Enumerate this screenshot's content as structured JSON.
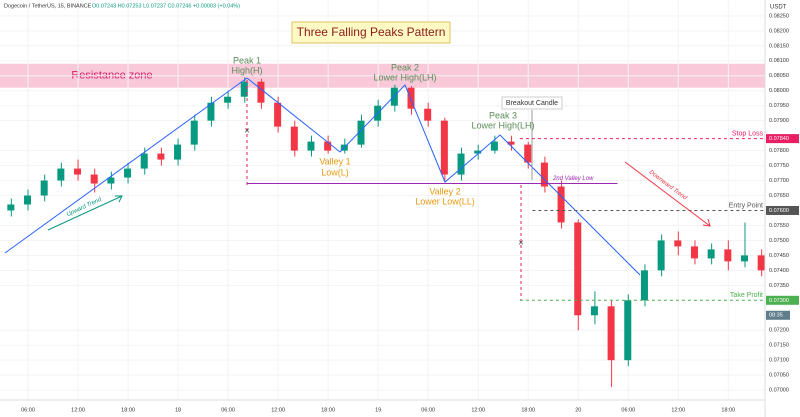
{
  "header": "Dogecoin / TetherUS, 15, BINANCE",
  "ohlc_header": "O0.07243 H0.07253 L0.07237 C0.07246 +0.00003 (+0.04%)",
  "currency": "USDT",
  "chart_data": {
    "type": "candlestick",
    "title": "Three Falling Peaks Pattern",
    "up_color": "#089981",
    "down_color": "#f23645",
    "x": [
      4,
      6,
      8,
      10,
      12,
      14,
      16,
      18,
      20,
      22,
      24,
      26,
      28,
      30,
      32,
      34,
      36,
      38,
      40,
      42,
      44,
      46,
      48,
      50,
      52,
      54,
      56,
      58,
      60,
      62,
      64,
      66,
      68,
      70,
      72,
      74,
      76,
      78,
      80,
      82,
      84,
      86,
      88,
      90,
      92,
      94
    ],
    "open": [
      0.076,
      0.0762,
      0.0765,
      0.077,
      0.0774,
      0.0772,
      0.0769,
      0.0771,
      0.0774,
      0.0779,
      0.0777,
      0.0782,
      0.079,
      0.0796,
      0.0798,
      0.0803,
      0.0796,
      0.0788,
      0.078,
      0.0783,
      0.078,
      0.0782,
      0.079,
      0.0795,
      0.0801,
      0.0794,
      0.079,
      0.0772,
      0.0779,
      0.078,
      0.0783,
      0.0782,
      0.0776,
      0.0768,
      0.0756,
      0.0725,
      0.0728,
      0.071,
      0.073,
      0.074,
      0.075,
      0.0748,
      0.0744,
      0.0747,
      0.0743,
      0.0745
    ],
    "high": [
      0.0764,
      0.0767,
      0.0772,
      0.0776,
      0.0777,
      0.0774,
      0.0773,
      0.0776,
      0.0781,
      0.0781,
      0.0784,
      0.0792,
      0.0798,
      0.08,
      0.08045,
      0.0804,
      0.0798,
      0.079,
      0.0785,
      0.0785,
      0.0784,
      0.0792,
      0.0797,
      0.0802,
      0.08015,
      0.0796,
      0.0791,
      0.0781,
      0.0782,
      0.0785,
      0.0785,
      0.0783,
      0.0778,
      0.077,
      0.0757,
      0.0733,
      0.073,
      0.0732,
      0.0742,
      0.0752,
      0.0753,
      0.075,
      0.0749,
      0.075,
      0.0756,
      0.0747
    ],
    "low": [
      0.0758,
      0.076,
      0.0763,
      0.0768,
      0.077,
      0.0766,
      0.0767,
      0.0769,
      0.0772,
      0.0775,
      0.0775,
      0.078,
      0.0788,
      0.0794,
      0.0796,
      0.0794,
      0.0786,
      0.0778,
      0.0778,
      0.0779,
      0.0779,
      0.0781,
      0.0788,
      0.0793,
      0.0792,
      0.0788,
      0.077,
      0.077,
      0.0777,
      0.0779,
      0.078,
      0.0774,
      0.0766,
      0.0754,
      0.072,
      0.0722,
      0.0701,
      0.0708,
      0.0728,
      0.0738,
      0.0745,
      0.0742,
      0.0742,
      0.074,
      0.0741,
      0.0738
    ],
    "close": [
      0.0762,
      0.0765,
      0.077,
      0.0774,
      0.0772,
      0.0769,
      0.0771,
      0.0774,
      0.0779,
      0.0777,
      0.0782,
      0.079,
      0.0796,
      0.0798,
      0.0803,
      0.0796,
      0.0788,
      0.078,
      0.0783,
      0.078,
      0.0782,
      0.079,
      0.0795,
      0.0801,
      0.0794,
      0.079,
      0.0772,
      0.0779,
      0.078,
      0.0783,
      0.0782,
      0.0776,
      0.0768,
      0.0756,
      0.0725,
      0.0728,
      0.071,
      0.073,
      0.074,
      0.075,
      0.0748,
      0.0744,
      0.0747,
      0.0743,
      0.0745,
      0.074
    ],
    "xlim": [
      2.64,
      94.4
    ],
    "xticks": [
      {
        "value": 6,
        "label": "06:00"
      },
      {
        "value": 12,
        "label": "12:00"
      },
      {
        "value": 18,
        "label": "18:00"
      },
      {
        "value": 24,
        "label": "18"
      },
      {
        "value": 30,
        "label": "06:00"
      },
      {
        "value": 36,
        "label": "12:00"
      },
      {
        "value": 42,
        "label": "18:00"
      },
      {
        "value": 48,
        "label": "19"
      },
      {
        "value": 54,
        "label": "06:00"
      },
      {
        "value": 60,
        "label": "12:00"
      },
      {
        "value": 66,
        "label": "18:00"
      },
      {
        "value": 72,
        "label": "20"
      },
      {
        "value": 78,
        "label": "06:00"
      },
      {
        "value": 84,
        "label": "12:00"
      },
      {
        "value": 90,
        "label": "18:00"
      }
    ],
    "ylim": [
      0.06967,
      0.08303
    ],
    "yticks": [
      {
        "value": 0.0825,
        "label": "0.08250"
      },
      {
        "value": 0.082,
        "label": "0.08200"
      },
      {
        "value": 0.0815,
        "label": "0.08150"
      },
      {
        "value": 0.081,
        "label": "0.08100"
      },
      {
        "value": 0.0805,
        "label": "0.08050"
      },
      {
        "value": 0.08,
        "label": "0.08000"
      },
      {
        "value": 0.0795,
        "label": "0.07950"
      },
      {
        "value": 0.079,
        "label": "0.07900"
      },
      {
        "value": 0.078,
        "label": "0.07800"
      },
      {
        "value": 0.0775,
        "label": "0.07750"
      },
      {
        "value": 0.077,
        "label": "0.07700"
      },
      {
        "value": 0.0765,
        "label": "0.07650"
      },
      {
        "value": 0.0755,
        "label": "0.07550"
      },
      {
        "value": 0.075,
        "label": "0.07500"
      },
      {
        "value": 0.0745,
        "label": "0.07450"
      },
      {
        "value": 0.074,
        "label": "0.07400"
      },
      {
        "value": 0.0735,
        "label": "0.07350"
      },
      {
        "value": 0.072,
        "label": "0.07200"
      },
      {
        "value": 0.0715,
        "label": "0.07150"
      },
      {
        "value": 0.071,
        "label": "0.07100"
      },
      {
        "value": 0.0705,
        "label": "0.07050"
      },
      {
        "value": 0.07,
        "label": "0.07000"
      }
    ],
    "resistance_zone": {
      "label": "Resistance zone",
      "from": 0.0801,
      "to": 0.0809,
      "color": "#f9c9d9"
    },
    "levels": [
      {
        "name": "Stop Loss",
        "value": 0.0784,
        "label": "0.07840",
        "color": "#e91e63",
        "start": 65
      },
      {
        "name": "Entry Point",
        "value": 0.076,
        "label": "0.07600",
        "color": "#555555",
        "start": 66.5
      },
      {
        "name": "Take Profit",
        "value": 0.073,
        "label": "0.07300",
        "color": "#4caf50",
        "start": 65
      },
      {
        "name": "2nd Valley Low",
        "value": 0.0769,
        "color": "#9c27b0",
        "start": 32.3,
        "end": 76.7
      }
    ],
    "countdown": {
      "label": "08:35",
      "value": 0.0725
    },
    "annotations": {
      "peak1": [
        "Peak 1",
        "High(H)"
      ],
      "peak2": [
        "Peak 2",
        "Lower High(LH)"
      ],
      "peak3": [
        "Peak 3",
        "Lower High(LH)"
      ],
      "valley1": [
        "Valley 1",
        "Low(L)"
      ],
      "valley2": [
        "Valley 2",
        "Lower Low(LL)"
      ],
      "breakout": "Breakout Candle",
      "up_trend": "Upward Trend",
      "down_trend": "Downward Trend"
    }
  }
}
